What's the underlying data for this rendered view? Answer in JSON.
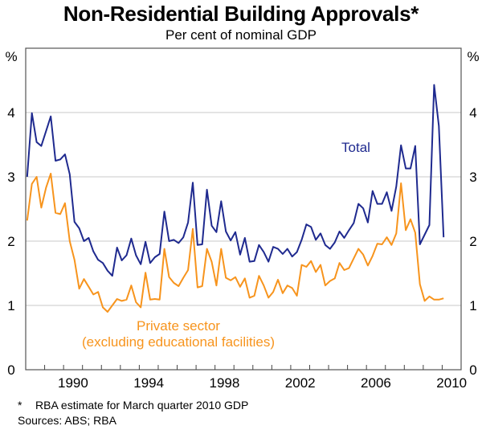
{
  "chart_data": {
    "type": "line",
    "title": "Non-Residential Building Approvals*",
    "subtitle": "Per cent of nominal GDP",
    "ylabel_left": "%",
    "ylabel_right": "%",
    "ylim": [
      0,
      5
    ],
    "yticks": [
      0,
      1,
      2,
      3,
      4
    ],
    "xlim": [
      1988,
      2011
    ],
    "xticks_labels": [
      "1990",
      "1994",
      "1998",
      "2002",
      "2006",
      "2010"
    ],
    "frequency": "quarterly",
    "start": "1988Q1",
    "end": "2010Q1",
    "grid": true,
    "series": [
      {
        "name": "Total",
        "label": "Total",
        "color": "#1f2a8f",
        "values": [
          3.0,
          3.99,
          3.54,
          3.48,
          3.71,
          3.94,
          3.25,
          3.27,
          3.35,
          3.04,
          2.3,
          2.2,
          2.0,
          2.05,
          1.84,
          1.71,
          1.66,
          1.54,
          1.46,
          1.9,
          1.7,
          1.78,
          2.04,
          1.78,
          1.64,
          1.99,
          1.66,
          1.75,
          1.8,
          2.46,
          2.0,
          2.02,
          1.97,
          2.06,
          2.29,
          2.91,
          1.94,
          1.95,
          2.8,
          2.24,
          2.14,
          2.62,
          2.15,
          2.01,
          2.14,
          1.79,
          2.05,
          1.68,
          1.69,
          1.94,
          1.83,
          1.68,
          1.91,
          1.88,
          1.8,
          1.88,
          1.76,
          1.83,
          2.02,
          2.26,
          2.22,
          2.02,
          2.12,
          1.94,
          1.88,
          1.98,
          2.15,
          2.05,
          2.17,
          2.28,
          2.58,
          2.51,
          2.29,
          2.78,
          2.58,
          2.58,
          2.76,
          2.47,
          2.85,
          3.49,
          3.13,
          3.13,
          3.48,
          1.95,
          2.1,
          2.25,
          4.43,
          3.79,
          2.06
        ]
      },
      {
        "name": "Private sector (excluding educational facilities)",
        "label": "Private sector",
        "label2": "(excluding educational facilities)",
        "color": "#f7941d",
        "values": [
          2.32,
          2.89,
          3.0,
          2.52,
          2.83,
          3.05,
          2.44,
          2.42,
          2.59,
          2.0,
          1.71,
          1.26,
          1.41,
          1.29,
          1.17,
          1.21,
          0.97,
          0.9,
          1.0,
          1.1,
          1.07,
          1.09,
          1.31,
          1.05,
          0.97,
          1.51,
          1.09,
          1.1,
          1.09,
          1.88,
          1.44,
          1.35,
          1.3,
          1.43,
          1.55,
          2.19,
          1.28,
          1.3,
          1.88,
          1.68,
          1.31,
          1.88,
          1.43,
          1.39,
          1.44,
          1.29,
          1.42,
          1.12,
          1.15,
          1.46,
          1.31,
          1.12,
          1.21,
          1.4,
          1.19,
          1.31,
          1.27,
          1.15,
          1.63,
          1.6,
          1.69,
          1.52,
          1.63,
          1.31,
          1.38,
          1.42,
          1.66,
          1.55,
          1.58,
          1.73,
          1.88,
          1.79,
          1.62,
          1.77,
          1.96,
          1.95,
          2.06,
          1.94,
          2.12,
          2.9,
          2.17,
          2.34,
          2.13,
          1.33,
          1.07,
          1.14,
          1.09,
          1.09,
          1.11
        ]
      }
    ]
  },
  "footnotes": {
    "star": "*",
    "note": "RBA estimate for March quarter 2010 GDP",
    "sources": "Sources: ABS; RBA"
  }
}
